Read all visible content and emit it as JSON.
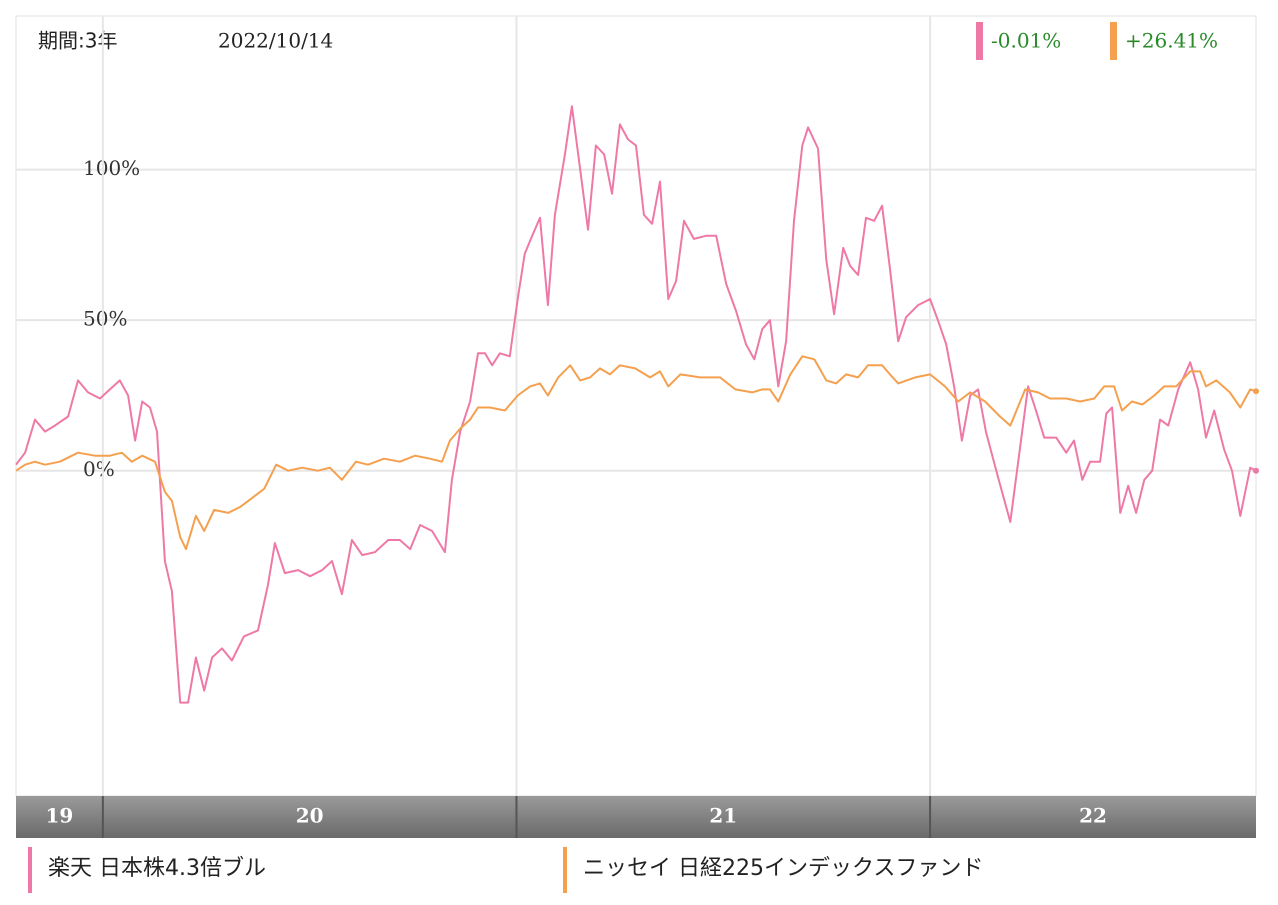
{
  "chart_data": {
    "type": "line",
    "period": "期間:3年",
    "date": "2022/10/14",
    "xlim": [
      2019.79,
      2022.788
    ],
    "xticks": [
      2020,
      2021,
      2022
    ],
    "year_labels": [
      "19",
      "20",
      "21",
      "22"
    ],
    "ylim": [
      -108,
      151
    ],
    "yticks": [
      {
        "value": 100,
        "label": "100%"
      },
      {
        "value": 50,
        "label": "50%"
      },
      {
        "value": 0,
        "label": "0%"
      }
    ],
    "grid": true,
    "series": [
      {
        "name": "楽天 日本株4.3倍ブル",
        "color": "#ef79a6",
        "return": "-0.01%",
        "x": [
          2019.79,
          2019.812,
          2019.836,
          2019.86,
          2019.884,
          2019.916,
          2019.94,
          2019.964,
          2019.993,
          2020.017,
          2020.041,
          2020.061,
          2020.078,
          2020.095,
          2020.114,
          2020.131,
          2020.15,
          2020.167,
          2020.187,
          2020.206,
          2020.225,
          2020.245,
          2020.264,
          2020.288,
          2020.312,
          2020.341,
          2020.375,
          2020.399,
          2020.416,
          2020.44,
          2020.472,
          2020.501,
          2020.53,
          2020.554,
          2020.578,
          2020.602,
          2020.627,
          2020.658,
          2020.69,
          2020.718,
          2020.743,
          2020.767,
          2020.796,
          2020.827,
          2020.844,
          2020.864,
          2020.888,
          2020.907,
          2020.924,
          2020.941,
          2020.96,
          2020.984,
          2021.003,
          2021.02,
          2021.038,
          2021.057,
          2021.076,
          2021.093,
          2021.117,
          2021.134,
          2021.154,
          2021.173,
          2021.192,
          2021.212,
          2021.231,
          2021.25,
          2021.27,
          2021.289,
          2021.308,
          2021.328,
          2021.347,
          2021.367,
          2021.386,
          2021.405,
          2021.429,
          2021.458,
          2021.483,
          2021.507,
          2021.531,
          2021.555,
          2021.575,
          2021.594,
          2021.613,
          2021.633,
          2021.652,
          2021.671,
          2021.691,
          2021.705,
          2021.729,
          2021.749,
          2021.768,
          2021.79,
          2021.807,
          2021.826,
          2021.845,
          2021.865,
          2021.884,
          2021.903,
          2021.923,
          2021.942,
          2021.971,
          2022.0,
          2022.019,
          2022.039,
          2022.058,
          2022.077,
          2022.097,
          2022.116,
          2022.135,
          2022.164,
          2022.194,
          2022.213,
          2022.237,
          2022.256,
          2022.276,
          2022.305,
          2022.329,
          2022.348,
          2022.368,
          2022.387,
          2022.411,
          2022.426,
          2022.44,
          2022.46,
          2022.479,
          2022.498,
          2022.518,
          2022.537,
          2022.556,
          2022.576,
          2022.6,
          2022.629,
          2022.648,
          2022.667,
          2022.687,
          2022.711,
          2022.73,
          2022.75,
          2022.774,
          2022.788
        ],
        "values": [
          2,
          6,
          17,
          13,
          15,
          18,
          30,
          26,
          24,
          27,
          30,
          25,
          10,
          23,
          21,
          13,
          -30,
          -40,
          -77,
          -77,
          -62,
          -73,
          -62,
          -59,
          -63,
          -55,
          -53,
          -38,
          -24,
          -34,
          -33,
          -35,
          -33,
          -30,
          -41,
          -23,
          -28,
          -27,
          -23,
          -23,
          -26,
          -18,
          -20,
          -27,
          -3,
          13,
          23,
          39,
          39,
          35,
          39,
          38,
          57,
          72,
          78,
          84,
          55,
          85,
          105,
          121,
          100,
          80,
          108,
          105,
          92,
          115,
          110,
          108,
          85,
          82,
          96,
          57,
          63,
          83,
          77,
          78,
          78,
          62,
          53,
          42,
          37,
          47,
          50,
          28,
          43,
          83,
          108,
          114,
          107,
          70,
          52,
          74,
          68,
          65,
          84,
          83,
          88,
          67,
          43,
          51,
          55,
          57,
          50,
          42,
          28,
          10,
          25,
          27,
          13,
          -2,
          -17,
          3,
          28,
          20,
          11,
          11,
          6,
          10,
          -3,
          3,
          3,
          19,
          21,
          -14,
          -5,
          -14,
          -3,
          0,
          17,
          15,
          27,
          36,
          27,
          11,
          20,
          7,
          0,
          -15,
          1,
          -0.01
        ]
      },
      {
        "name": "ニッセイ 日経225インデックスファンド",
        "color": "#f4a04f",
        "return": "+26.41%",
        "x": [
          2019.79,
          2019.812,
          2019.836,
          2019.86,
          2019.896,
          2019.94,
          2019.981,
          2020.017,
          2020.046,
          2020.07,
          2020.095,
          2020.126,
          2020.15,
          2020.167,
          2020.187,
          2020.201,
          2020.225,
          2020.245,
          2020.269,
          2020.303,
          2020.332,
          2020.361,
          2020.39,
          2020.419,
          2020.448,
          2020.482,
          2020.52,
          2020.549,
          2020.578,
          2020.612,
          2020.641,
          2020.68,
          2020.718,
          2020.755,
          2020.791,
          2020.82,
          2020.839,
          2020.864,
          2020.888,
          2020.907,
          2020.936,
          2020.972,
          2021.003,
          2021.033,
          2021.057,
          2021.076,
          2021.101,
          2021.13,
          2021.154,
          2021.178,
          2021.202,
          2021.226,
          2021.25,
          2021.287,
          2021.323,
          2021.347,
          2021.367,
          2021.396,
          2021.444,
          2021.492,
          2021.529,
          2021.57,
          2021.594,
          2021.613,
          2021.633,
          2021.662,
          2021.691,
          2021.72,
          2021.749,
          2021.773,
          2021.797,
          2021.826,
          2021.85,
          2021.884,
          2021.903,
          2021.923,
          2021.964,
          2022.0,
          2022.036,
          2022.068,
          2022.097,
          2022.133,
          2022.169,
          2022.194,
          2022.23,
          2022.261,
          2022.29,
          2022.329,
          2022.363,
          2022.397,
          2022.421,
          2022.445,
          2022.464,
          2022.488,
          2022.513,
          2022.542,
          2022.566,
          2022.595,
          2022.629,
          2022.653,
          2022.667,
          2022.692,
          2022.725,
          2022.75,
          2022.774,
          2022.788
        ],
        "values": [
          0,
          2,
          3,
          2,
          3,
          6,
          5,
          5,
          6,
          3,
          5,
          3,
          -7,
          -10,
          -22,
          -26,
          -15,
          -20,
          -13,
          -14,
          -12,
          -9,
          -6,
          2,
          0,
          1,
          0,
          1,
          -3,
          3,
          2,
          4,
          3,
          5,
          4,
          3,
          10,
          14,
          17,
          21,
          21,
          20,
          25,
          28,
          29,
          25,
          31,
          35,
          30,
          31,
          34,
          32,
          35,
          34,
          31,
          33,
          28,
          32,
          31,
          31,
          27,
          26,
          27,
          27,
          23,
          32,
          38,
          37,
          30,
          29,
          32,
          31,
          35,
          35,
          32,
          29,
          31,
          32,
          28,
          23,
          26,
          23,
          18,
          15,
          27,
          26,
          24,
          24,
          23,
          24,
          28,
          28,
          20,
          23,
          22,
          25,
          28,
          28,
          33,
          33,
          28,
          30,
          26,
          21,
          27,
          26.41
        ]
      }
    ]
  }
}
